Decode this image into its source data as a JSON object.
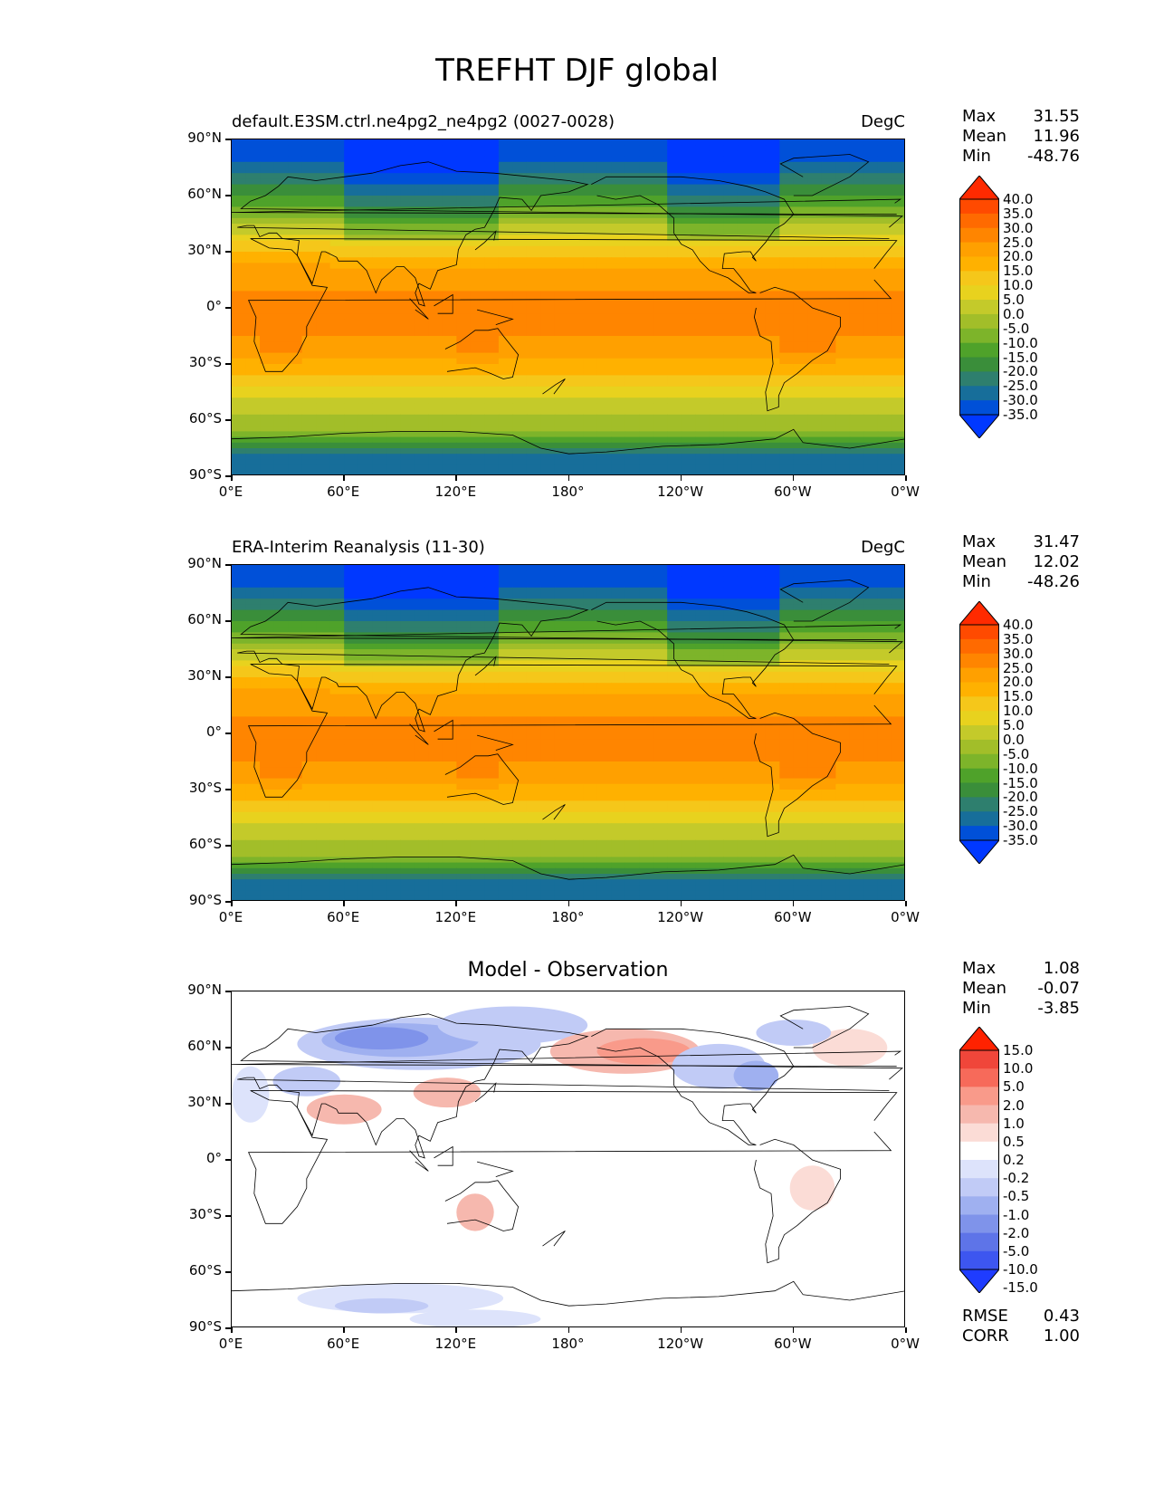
{
  "figure": {
    "title": "TREFHT DJF global"
  },
  "axes": {
    "lat_ticks": [
      "90°N",
      "60°N",
      "30°N",
      "0°",
      "30°S",
      "60°S",
      "90°S"
    ],
    "lon_ticks": [
      "0°E",
      "60°E",
      "120°E",
      "180°",
      "120°W",
      "60°W",
      "0°W"
    ]
  },
  "panels": [
    {
      "left_title": "default.E3SM.ctrl.ne4pg2_ne4pg2 (0027-0028)",
      "right_title": "DegC",
      "stats": [
        {
          "label": "Max",
          "value": "31.55"
        },
        {
          "label": "Mean",
          "value": "11.96"
        },
        {
          "label": "Min",
          "value": "-48.76"
        }
      ],
      "colorbar": [
        "40.0",
        "35.0",
        "30.0",
        "25.0",
        "20.0",
        "15.0",
        "10.0",
        "5.0",
        "0.0",
        "-5.0",
        "-10.0",
        "-15.0",
        "-20.0",
        "-25.0",
        "-30.0",
        "-35.0"
      ]
    },
    {
      "left_title": "ERA-Interim Reanalysis (11-30)",
      "right_title": "DegC",
      "stats": [
        {
          "label": "Max",
          "value": "31.47"
        },
        {
          "label": "Mean",
          "value": "12.02"
        },
        {
          "label": "Min",
          "value": "-48.26"
        }
      ],
      "colorbar": [
        "40.0",
        "35.0",
        "30.0",
        "25.0",
        "20.0",
        "15.0",
        "10.0",
        "5.0",
        "0.0",
        "-5.0",
        "-10.0",
        "-15.0",
        "-20.0",
        "-25.0",
        "-30.0",
        "-35.0"
      ]
    },
    {
      "center_title": "Model - Observation",
      "stats": [
        {
          "label": "Max",
          "value": "1.08"
        },
        {
          "label": "Mean",
          "value": "-0.07"
        },
        {
          "label": "Min",
          "value": "-3.85"
        }
      ],
      "colorbar": [
        "15.0",
        "10.0",
        "5.0",
        "2.0",
        "1.0",
        "0.5",
        "0.2",
        "-0.2",
        "-0.5",
        "-1.0",
        "-2.0",
        "-5.0",
        "-10.0",
        "-15.0"
      ],
      "metrics": [
        {
          "label": "RMSE",
          "value": "0.43"
        },
        {
          "label": "CORR",
          "value": "1.00"
        }
      ]
    }
  ],
  "colors": {
    "temp_scale": [
      "#ff2a00",
      "#ff4a00",
      "#ff6a00",
      "#ff8500",
      "#ffa000",
      "#ffb100",
      "#f5c71a",
      "#e8d21e",
      "#c4ca2a",
      "#a2be29",
      "#7db42a",
      "#4fa22a",
      "#3a8e3a",
      "#2e7f6e",
      "#176e9a",
      "#0050d8",
      "#0038ff"
    ],
    "diff_scale": [
      "#ff2200",
      "#f0463a",
      "#f76a5a",
      "#f99a8a",
      "#f6b8ae",
      "#fbdcd6",
      "#ffffff",
      "#dde3fb",
      "#c1cbf6",
      "#9fb0f0",
      "#7f93ea",
      "#5e74e8",
      "#3d56f0",
      "#1f3cff"
    ]
  },
  "chart_data": [
    {
      "type": "heatmap",
      "title": "default.E3SM.ctrl.ne4pg2_ne4pg2 (0027-0028)",
      "units": "DegC",
      "xlim": [
        0,
        360
      ],
      "ylim": [
        -90,
        90
      ],
      "x_ticks": [
        "0°E",
        "60°E",
        "120°E",
        "180°",
        "120°W",
        "60°W",
        "0°W"
      ],
      "y_ticks": [
        "90°N",
        "60°N",
        "30°N",
        "0°",
        "30°S",
        "60°S",
        "90°S"
      ],
      "levels": [
        -35,
        -30,
        -25,
        -20,
        -15,
        -10,
        -5,
        0,
        5,
        10,
        15,
        20,
        25,
        30,
        35,
        40
      ],
      "max": 31.55,
      "mean": 11.96,
      "min": -48.76,
      "zonal_profile_lat": [
        85,
        75,
        65,
        55,
        45,
        35,
        25,
        15,
        5,
        -5,
        -15,
        -25,
        -35,
        -45,
        -55,
        -65,
        -75,
        -85
      ],
      "zonal_profile_value": [
        -34,
        -28,
        -20,
        -10,
        -1,
        9,
        17,
        24,
        26,
        26,
        25,
        22,
        16,
        8,
        1,
        -5,
        -22,
        -30
      ]
    },
    {
      "type": "heatmap",
      "title": "ERA-Interim Reanalysis (11-30)",
      "units": "DegC",
      "xlim": [
        0,
        360
      ],
      "ylim": [
        -90,
        90
      ],
      "levels": [
        -35,
        -30,
        -25,
        -20,
        -15,
        -10,
        -5,
        0,
        5,
        10,
        15,
        20,
        25,
        30,
        35,
        40
      ],
      "max": 31.47,
      "mean": 12.02,
      "min": -48.26,
      "zonal_profile_lat": [
        85,
        75,
        65,
        55,
        45,
        35,
        25,
        15,
        5,
        -5,
        -15,
        -25,
        -35,
        -45,
        -55,
        -65,
        -75,
        -85
      ],
      "zonal_profile_value": [
        -34,
        -28,
        -20,
        -10,
        -1,
        9,
        17,
        24,
        26,
        26,
        25,
        22,
        16,
        8,
        1,
        -5,
        -22,
        -30
      ]
    },
    {
      "type": "heatmap",
      "title": "Model - Observation",
      "xlim": [
        0,
        360
      ],
      "ylim": [
        -90,
        90
      ],
      "levels": [
        -15,
        -10,
        -5,
        -2,
        -1,
        -0.5,
        -0.2,
        0.2,
        0.5,
        1,
        2,
        5,
        10,
        15
      ],
      "max": 1.08,
      "mean": -0.07,
      "min": -3.85,
      "rmse": 0.43,
      "corr": 1.0
    }
  ]
}
